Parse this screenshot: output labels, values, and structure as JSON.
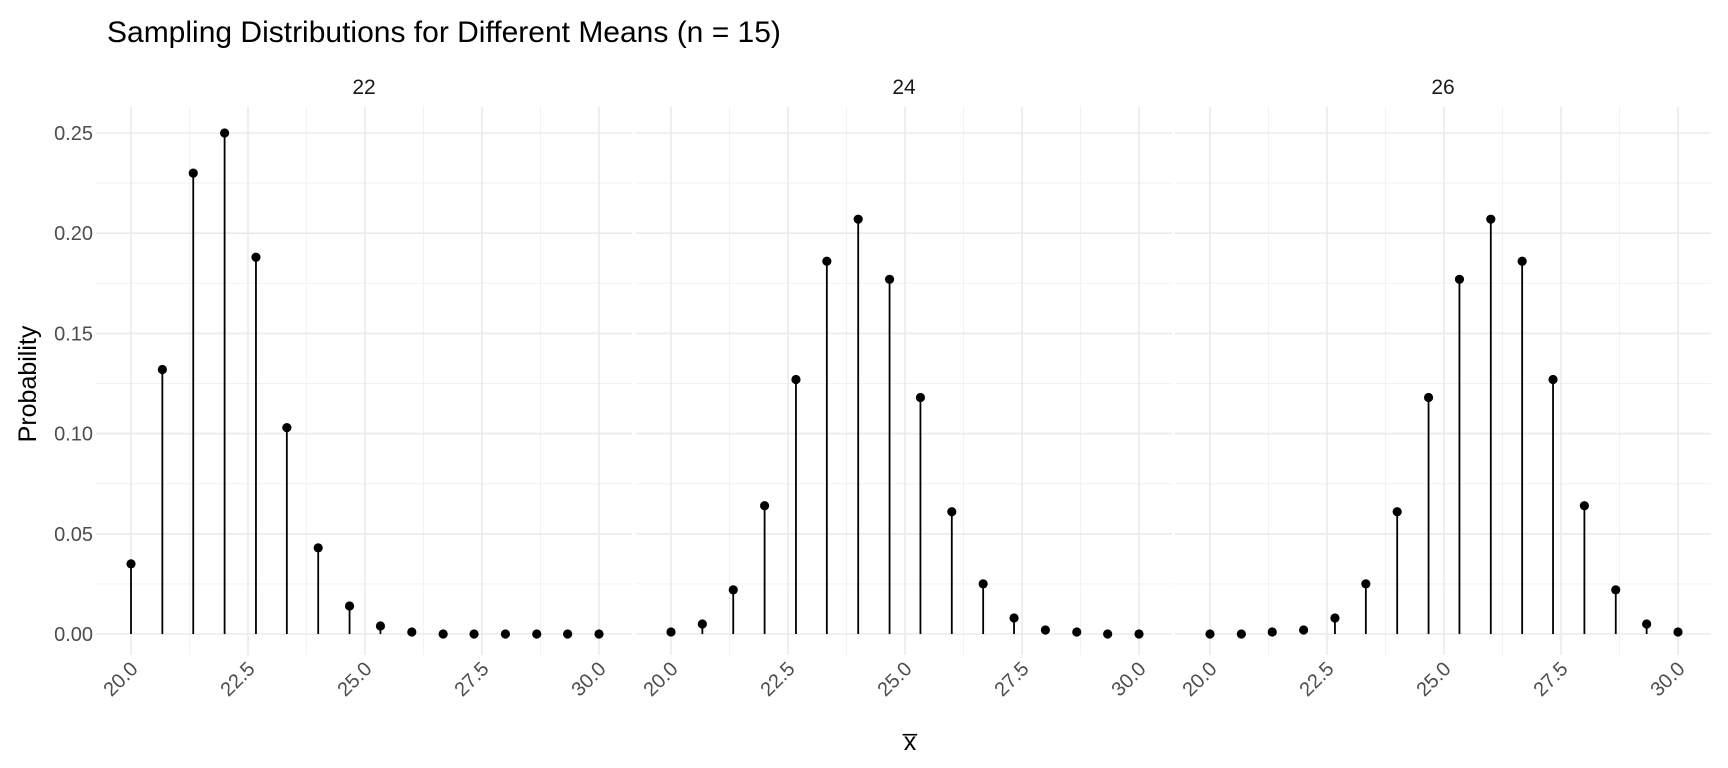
{
  "chart_data": {
    "type": "lollipop",
    "title": "Sampling Distributions for Different Means (n = 15)",
    "xlabel": "x̅",
    "ylabel": "Probability",
    "ylim": [
      0,
      0.25
    ],
    "xlim": [
      20,
      30
    ],
    "yticks": [
      "0.00",
      "0.05",
      "0.10",
      "0.15",
      "0.20",
      "0.25"
    ],
    "xticks": [
      "20.0",
      "22.5",
      "25.0",
      "27.5",
      "30.0"
    ],
    "grid": true,
    "x": [
      20.0,
      20.67,
      21.33,
      22.0,
      22.67,
      23.33,
      24.0,
      24.67,
      25.33,
      26.0,
      26.67,
      27.33,
      28.0,
      28.67,
      29.33,
      30.0
    ],
    "panels": [
      {
        "name": "22",
        "values": [
          0.035,
          0.132,
          0.23,
          0.25,
          0.188,
          0.103,
          0.043,
          0.014,
          0.004,
          0.001,
          0.0,
          0.0,
          0.0,
          0.0,
          0.0,
          0.0
        ]
      },
      {
        "name": "24",
        "values": [
          0.001,
          0.005,
          0.022,
          0.064,
          0.127,
          0.186,
          0.207,
          0.177,
          0.118,
          0.061,
          0.025,
          0.008,
          0.002,
          0.001,
          0.0,
          0.0
        ]
      },
      {
        "name": "26",
        "values": [
          0.0,
          0.0,
          0.001,
          0.002,
          0.008,
          0.025,
          0.061,
          0.118,
          0.177,
          0.207,
          0.186,
          0.127,
          0.064,
          0.022,
          0.005,
          0.001
        ]
      }
    ]
  }
}
